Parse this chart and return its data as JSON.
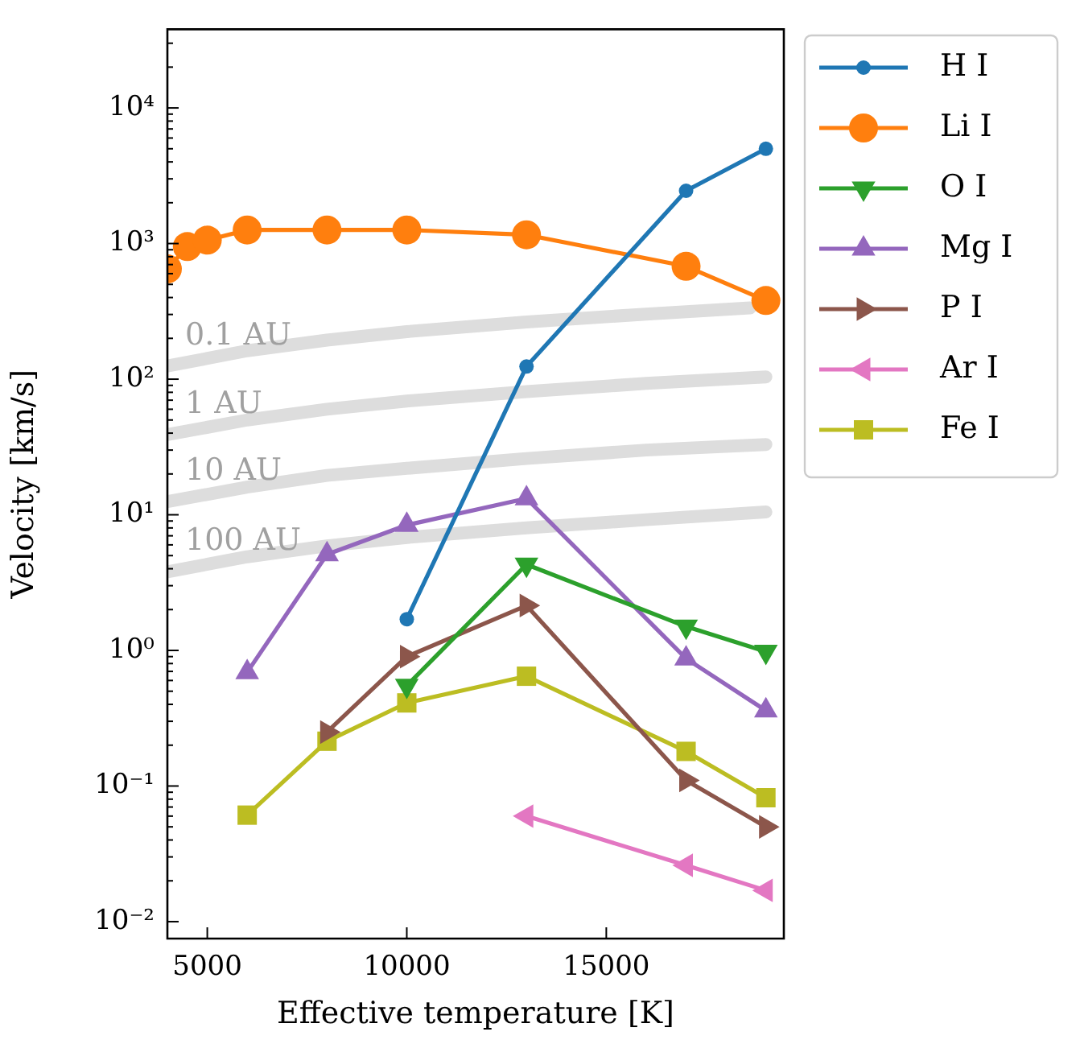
{
  "chart_data": {
    "type": "line",
    "xlabel": "Effective temperature [K]",
    "ylabel": "Velocity [km/s]",
    "log": "y",
    "grid": false,
    "legend": "right",
    "xlim": [
      4000,
      19450
    ],
    "xticks": [
      5000,
      10000,
      15000
    ],
    "ylim": [
      0.0075,
      38000
    ],
    "yticks": [
      {
        "value": 0.01,
        "label": "10⁻²"
      },
      {
        "value": 0.02,
        "label": null
      },
      {
        "value": 0.03,
        "label": null
      },
      {
        "value": 0.04,
        "label": null
      },
      {
        "value": 0.05,
        "label": null
      },
      {
        "value": 0.06,
        "label": null
      },
      {
        "value": 0.07,
        "label": null
      },
      {
        "value": 0.08,
        "label": null
      },
      {
        "value": 0.09,
        "label": null
      },
      {
        "value": 0.1,
        "label": "10⁻¹"
      },
      {
        "value": 0.2,
        "label": null
      },
      {
        "value": 0.3,
        "label": null
      },
      {
        "value": 0.4,
        "label": null
      },
      {
        "value": 0.5,
        "label": null
      },
      {
        "value": 0.6,
        "label": null
      },
      {
        "value": 0.7,
        "label": null
      },
      {
        "value": 0.8,
        "label": null
      },
      {
        "value": 0.9,
        "label": null
      },
      {
        "value": 1,
        "label": "10⁰"
      },
      {
        "value": 2,
        "label": null
      },
      {
        "value": 3,
        "label": null
      },
      {
        "value": 4,
        "label": null
      },
      {
        "value": 5,
        "label": null
      },
      {
        "value": 6,
        "label": null
      },
      {
        "value": 7,
        "label": null
      },
      {
        "value": 8,
        "label": null
      },
      {
        "value": 9,
        "label": null
      },
      {
        "value": 10,
        "label": "10¹"
      },
      {
        "value": 20,
        "label": null
      },
      {
        "value": 30,
        "label": null
      },
      {
        "value": 40,
        "label": null
      },
      {
        "value": 50,
        "label": null
      },
      {
        "value": 60,
        "label": null
      },
      {
        "value": 70,
        "label": null
      },
      {
        "value": 80,
        "label": null
      },
      {
        "value": 90,
        "label": null
      },
      {
        "value": 100,
        "label": "10²"
      },
      {
        "value": 200,
        "label": null
      },
      {
        "value": 300,
        "label": null
      },
      {
        "value": 400,
        "label": null
      },
      {
        "value": 500,
        "label": null
      },
      {
        "value": 600,
        "label": null
      },
      {
        "value": 700,
        "label": null
      },
      {
        "value": 800,
        "label": null
      },
      {
        "value": 900,
        "label": null
      },
      {
        "value": 1000,
        "label": "10³"
      },
      {
        "value": 2000,
        "label": null
      },
      {
        "value": 3000,
        "label": null
      },
      {
        "value": 4000,
        "label": null
      },
      {
        "value": 5000,
        "label": null
      },
      {
        "value": 6000,
        "label": null
      },
      {
        "value": 7000,
        "label": null
      },
      {
        "value": 8000,
        "label": null
      },
      {
        "value": 9000,
        "label": null
      },
      {
        "value": 10000,
        "label": "10⁴"
      },
      {
        "value": 20000,
        "label": null
      },
      {
        "value": 30000,
        "label": null
      }
    ],
    "series": [
      {
        "name": "0.1 AU",
        "color": "#dddddd",
        "marker": "none",
        "x": [
          4000,
          6000,
          8000,
          10000,
          13000,
          16000,
          18600
        ],
        "values": [
          125,
          162,
          194,
          224,
          264,
          302,
          335
        ]
      },
      {
        "name": "1 AU",
        "color": "#dddddd",
        "marker": "none",
        "x": [
          4000,
          6000,
          8000,
          10000,
          13000,
          16000,
          19000
        ],
        "values": [
          39,
          50,
          60,
          69,
          81,
          93,
          104
        ]
      },
      {
        "name": "10 AU",
        "color": "#dddddd",
        "marker": "none",
        "x": [
          4000,
          6000,
          8000,
          10000,
          13000,
          16000,
          19000
        ],
        "values": [
          12.5,
          16,
          19.5,
          22,
          26,
          30,
          33
        ]
      },
      {
        "name": "100 AU",
        "color": "#dddddd",
        "marker": "none",
        "x": [
          4000,
          6000,
          8000,
          10000,
          13000,
          16000,
          19000
        ],
        "values": [
          3.8,
          4.9,
          5.9,
          6.8,
          8,
          9.2,
          10.5
        ]
      },
      {
        "name": "H I",
        "color": "#1f77b4",
        "marker": "circle",
        "x": [
          10000,
          13000,
          17000,
          19000
        ],
        "values": [
          1.7,
          124,
          2450,
          5000
        ]
      },
      {
        "name": "Li I",
        "color": "#ff7f0e",
        "marker": "circle",
        "x": [
          4000,
          4500,
          5000,
          6000,
          8000,
          10000,
          13000,
          17000,
          19000
        ],
        "values": [
          650,
          950,
          1060,
          1260,
          1260,
          1260,
          1160,
          680,
          380
        ]
      },
      {
        "name": "O I",
        "color": "#2ca02c",
        "marker": "triangle-down",
        "x": [
          10000,
          13000,
          17000,
          19000
        ],
        "values": [
          0.55,
          4.3,
          1.5,
          0.98
        ]
      },
      {
        "name": "Mg I",
        "color": "#9467bd",
        "marker": "triangle",
        "x": [
          6000,
          8000,
          10000,
          13000,
          17000,
          19000
        ],
        "values": [
          0.69,
          5.1,
          8.4,
          13.2,
          0.87,
          0.36
        ]
      },
      {
        "name": "P I",
        "color": "#8c564b",
        "marker": "triangle-right",
        "x": [
          8000,
          10000,
          13000,
          17000,
          19000
        ],
        "values": [
          0.25,
          0.9,
          2.14,
          0.11,
          0.05
        ]
      },
      {
        "name": "Ar I",
        "color": "#e377c2",
        "marker": "triangle-left",
        "x": [
          13000,
          17000,
          19000
        ],
        "values": [
          0.06,
          0.026,
          0.017
        ]
      },
      {
        "name": "Fe I",
        "color": "#bcbd22",
        "marker": "square",
        "x": [
          6000,
          8000,
          10000,
          13000,
          17000,
          19000
        ],
        "values": [
          0.061,
          0.214,
          0.41,
          0.645,
          0.18,
          0.082
        ]
      }
    ]
  }
}
